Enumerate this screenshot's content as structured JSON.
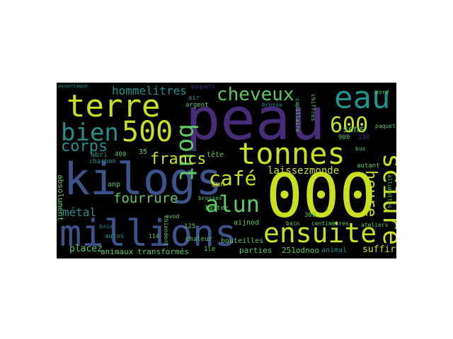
{
  "words": {
    "peau": "peau",
    "kilogs": "kilogs",
    "millions": "millions",
    "zero": "000",
    "tonnes": "tonnes",
    "eau": "eau",
    "terre": "terre",
    "bien": "bien",
    "five_hundred": "500",
    "ensuite": "ensuite",
    "sciure": "sciure",
    "alun": "alun",
    "cheveux": "cheveux",
    "bout": "bout",
    "six_hundred": "600",
    "cafe": "café",
    "heure": "heure",
    "francs": "francs",
    "fourrure": "fourrure",
    "corps": "corps",
    "hommelitres": "hommelitres",
    "metal": "métal",
    "laissezmonde": "laissezmonde",
    "suffirait": "suffirait",
    "placez": "placez",
    "animaux": "animaux",
    "transformes": "transformés",
    "parties": "parties",
    "odnoo": "251odnoo",
    "animal": "animal",
    "sens": "sens",
    "absolument": "absolument",
    "charbon": "charbon",
    "abri": "abri",
    "bois": "bois",
    "autos": "autos",
    "chaleur": "chaleur",
    "bouteilles": "bouteilles",
    "centimetres": "centimètres",
    "ateliers": "ateliers",
    "allumettes": "allumettes",
    "tete": "tête",
    "sun": "sun",
    "battez": "battez",
    "aijnod": "aijnod",
    "anp": "anp",
    "n125": "125",
    "n114": "114",
    "n400": "400",
    "n35": "35",
    "n300": "300",
    "n900": "900",
    "n150": "150",
    "bus": "bus",
    "bain": "bain",
    "brosse": "brosse",
    "argent": "argent",
    "air": "air",
    "bord": "bord",
    "paquet": "paquet",
    "ile": "1le",
    "assontaque": "assontaque",
    "baquets": "baquets",
    "chiffres": "chiffres",
    "capillaire": "capillaire",
    "brosses": "brosses",
    "autant": "autant",
    "chiendent": "chiendent",
    "evod": "evod"
  },
  "colors": {
    "yellow_green": "#c8e020",
    "green": "#5ec962",
    "teal": "#21918c",
    "blue": "#3b528b",
    "purple": "#472c7a",
    "dark_purple": "#440154",
    "background": "#000000"
  }
}
